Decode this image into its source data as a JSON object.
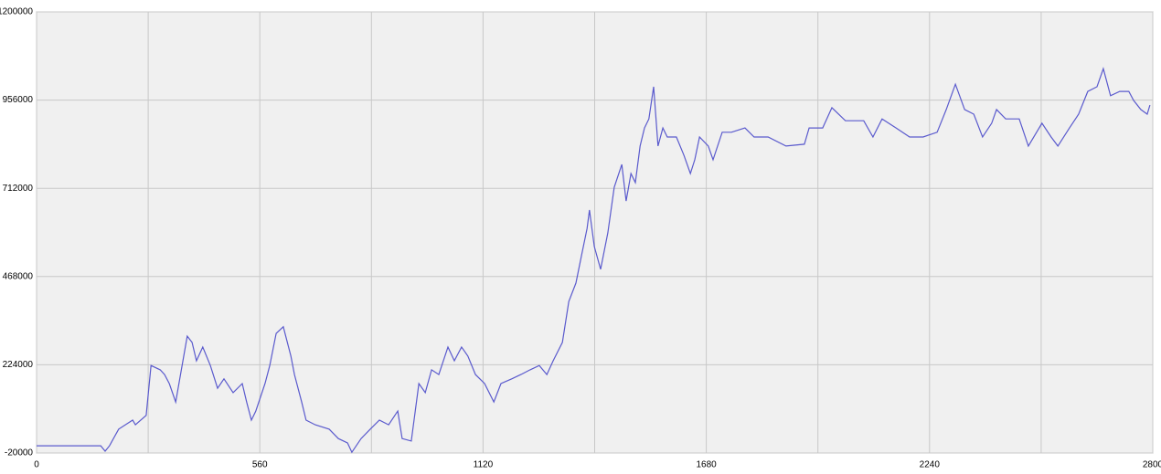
{
  "chart_data": {
    "type": "line",
    "grid": true,
    "xlim": [
      0,
      2800
    ],
    "xticks": [
      0,
      560,
      1120,
      1680,
      2240,
      2800
    ],
    "xminorticks": [
      280,
      840,
      1400,
      1960,
      2520
    ],
    "ylim": [
      -20000,
      1200000
    ],
    "yticks": [
      -20000,
      224000,
      468000,
      712000,
      956000,
      1200000
    ],
    "x": [
      0,
      161,
      172,
      183,
      206,
      241,
      248,
      275,
      287,
      310,
      321,
      333,
      349,
      378,
      390,
      401,
      417,
      436,
      454,
      470,
      493,
      516,
      527,
      539,
      550,
      573,
      585,
      601,
      619,
      638,
      647,
      665,
      676,
      699,
      734,
      757,
      780,
      791,
      814,
      837,
      860,
      883,
      906,
      917,
      940,
      959,
      975,
      991,
      1009,
      1032,
      1048,
      1066,
      1082,
      1101,
      1124,
      1147,
      1165,
      1192,
      1215,
      1238,
      1261,
      1280,
      1296,
      1319,
      1335,
      1353,
      1367,
      1381,
      1387,
      1399,
      1415,
      1433,
      1449,
      1468,
      1479,
      1491,
      1502,
      1514,
      1525,
      1536,
      1548,
      1559,
      1571,
      1582,
      1605,
      1624,
      1640,
      1651,
      1663,
      1685,
      1697,
      1720,
      1743,
      1777,
      1800,
      1835,
      1880,
      1926,
      1938,
      1972,
      1995,
      2029,
      2075,
      2098,
      2121,
      2156,
      2190,
      2224,
      2259,
      2282,
      2305,
      2328,
      2351,
      2373,
      2396,
      2408,
      2431,
      2465,
      2488,
      2522,
      2545,
      2562,
      2591,
      2614,
      2637,
      2660,
      2676,
      2694,
      2717,
      2740,
      2752,
      2770,
      2786,
      2793
    ],
    "series": [
      {
        "color": "#5a5acd",
        "values": [
          0,
          0,
          -15000,
          0,
          46000,
          71000,
          58000,
          84000,
          222000,
          210000,
          197000,
          172000,
          121000,
          303000,
          286000,
          235000,
          273000,
          222000,
          159000,
          185000,
          147000,
          172000,
          121000,
          71000,
          96000,
          172000,
          222000,
          311000,
          329000,
          248000,
          197000,
          121000,
          71000,
          58000,
          46000,
          20000,
          8000,
          -18000,
          20000,
          46000,
          71000,
          58000,
          96000,
          20000,
          13000,
          172000,
          147000,
          210000,
          197000,
          273000,
          235000,
          273000,
          248000,
          197000,
          172000,
          121000,
          172000,
          185000,
          197000,
          210000,
          222000,
          197000,
          235000,
          286000,
          399000,
          450000,
          526000,
          601000,
          652000,
          551000,
          488000,
          589000,
          715000,
          778000,
          677000,
          753000,
          728000,
          829000,
          879000,
          904000,
          993000,
          829000,
          879000,
          854000,
          854000,
          803000,
          753000,
          791000,
          854000,
          829000,
          791000,
          867000,
          867000,
          879000,
          854000,
          854000,
          829000,
          834000,
          879000,
          879000,
          935000,
          899000,
          899000,
          854000,
          904000,
          879000,
          854000,
          854000,
          867000,
          930000,
          1000000,
          930000,
          917000,
          854000,
          892000,
          930000,
          904000,
          904000,
          829000,
          892000,
          854000,
          829000,
          879000,
          917000,
          980000,
          993000,
          1043000,
          968000,
          980000,
          980000,
          955000,
          930000,
          917000,
          942000
        ]
      }
    ]
  }
}
